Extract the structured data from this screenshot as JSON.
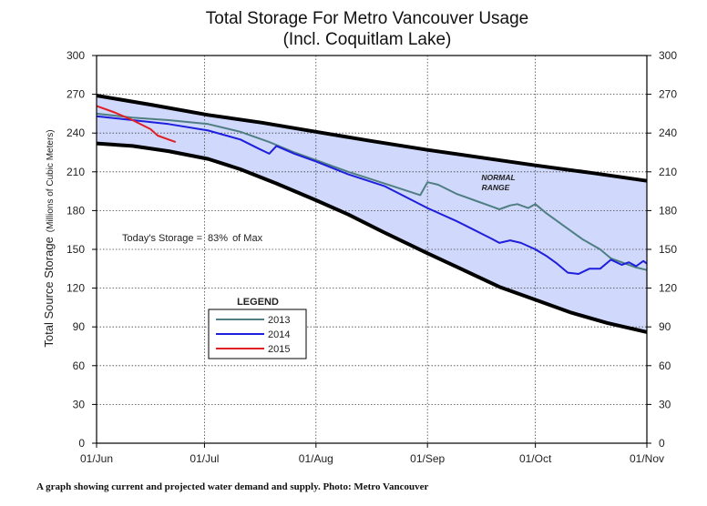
{
  "chart_data": {
    "type": "line",
    "title": "Total Storage For Metro Vancouver Usage",
    "subtitle": "(Incl. Coquitlam Lake)",
    "ylabel": "Total Source Storage",
    "ylabel_unit": "(Millions of Cubic Meters)",
    "xlabel": "",
    "ylim": [
      0,
      300
    ],
    "y_ticks": [
      0,
      30,
      60,
      90,
      120,
      150,
      180,
      210,
      240,
      270,
      300
    ],
    "y_tick_labels": [
      "0",
      "30",
      "60",
      "90",
      "120",
      "150",
      "180",
      "210",
      "240",
      "270",
      "300"
    ],
    "x_range_days": [
      0,
      153
    ],
    "x_ticks": [
      0,
      30,
      61,
      92,
      122,
      153
    ],
    "x_tick_labels": [
      "01/Jun",
      "01/Jul",
      "01/Aug",
      "01/Sep",
      "01/Oct",
      "01/Nov"
    ],
    "grid": true,
    "grid_style": "dotted",
    "normal_range": {
      "label": "NORMAL RANGE",
      "upper": [
        [
          0,
          269
        ],
        [
          15,
          262
        ],
        [
          31,
          254
        ],
        [
          46,
          248
        ],
        [
          61,
          241
        ],
        [
          76,
          234
        ],
        [
          92,
          227
        ],
        [
          107,
          221
        ],
        [
          122,
          215
        ],
        [
          138,
          209
        ],
        [
          153,
          203
        ]
      ],
      "lower": [
        [
          0,
          232
        ],
        [
          10,
          230
        ],
        [
          20,
          226
        ],
        [
          31,
          220
        ],
        [
          40,
          212
        ],
        [
          50,
          201
        ],
        [
          61,
          188
        ],
        [
          70,
          177
        ],
        [
          80,
          163
        ],
        [
          92,
          147
        ],
        [
          102,
          134
        ],
        [
          112,
          121
        ],
        [
          122,
          111
        ],
        [
          132,
          101
        ],
        [
          142,
          93
        ],
        [
          153,
          86
        ]
      ],
      "fill_color": "#d0d8fb",
      "line_color": "#000000"
    },
    "series": [
      {
        "name": "2013",
        "color": "#4f7f82",
        "points": [
          [
            0,
            255
          ],
          [
            10,
            252
          ],
          [
            20,
            250
          ],
          [
            31,
            247
          ],
          [
            40,
            241
          ],
          [
            48,
            233
          ],
          [
            55,
            225
          ],
          [
            61,
            219
          ],
          [
            70,
            210
          ],
          [
            80,
            201
          ],
          [
            90,
            192
          ],
          [
            92,
            202
          ],
          [
            95,
            200
          ],
          [
            100,
            193
          ],
          [
            105,
            188
          ],
          [
            110,
            183
          ],
          [
            112,
            181
          ],
          [
            115,
            184
          ],
          [
            117,
            185
          ],
          [
            120,
            182
          ],
          [
            122,
            185
          ],
          [
            125,
            178
          ],
          [
            130,
            168
          ],
          [
            135,
            158
          ],
          [
            140,
            150
          ],
          [
            143,
            143
          ],
          [
            146,
            140
          ],
          [
            150,
            136
          ],
          [
            153,
            134
          ]
        ]
      },
      {
        "name": "2014",
        "color": "#1e1edd",
        "points": [
          [
            0,
            253
          ],
          [
            10,
            250
          ],
          [
            20,
            247
          ],
          [
            31,
            242
          ],
          [
            40,
            235
          ],
          [
            45,
            228
          ],
          [
            48,
            224
          ],
          [
            50,
            230
          ],
          [
            55,
            224
          ],
          [
            61,
            218
          ],
          [
            70,
            208
          ],
          [
            80,
            199
          ],
          [
            92,
            182
          ],
          [
            100,
            172
          ],
          [
            105,
            165
          ],
          [
            110,
            158
          ],
          [
            112,
            155
          ],
          [
            115,
            157
          ],
          [
            118,
            155
          ],
          [
            122,
            150
          ],
          [
            125,
            145
          ],
          [
            128,
            139
          ],
          [
            131,
            132
          ],
          [
            134,
            131
          ],
          [
            137,
            135
          ],
          [
            140,
            135
          ],
          [
            143,
            142
          ],
          [
            146,
            138
          ],
          [
            148,
            140
          ],
          [
            150,
            137
          ],
          [
            152,
            141
          ],
          [
            153,
            139
          ]
        ]
      },
      {
        "name": "2015",
        "color": "#e01f24",
        "points": [
          [
            0,
            261
          ],
          [
            5,
            256
          ],
          [
            10,
            250
          ],
          [
            15,
            243
          ],
          [
            17,
            238
          ],
          [
            20,
            235
          ],
          [
            22,
            233
          ]
        ]
      }
    ],
    "annotations": {
      "today_label": "Today's Storage =",
      "today_value": "83%",
      "today_suffix": "of Max"
    },
    "legend": {
      "title": "LEGEND",
      "placement": "left-middle"
    }
  },
  "caption": "A graph showing current and projected water demand and supply. Photo: Metro Vancouver"
}
